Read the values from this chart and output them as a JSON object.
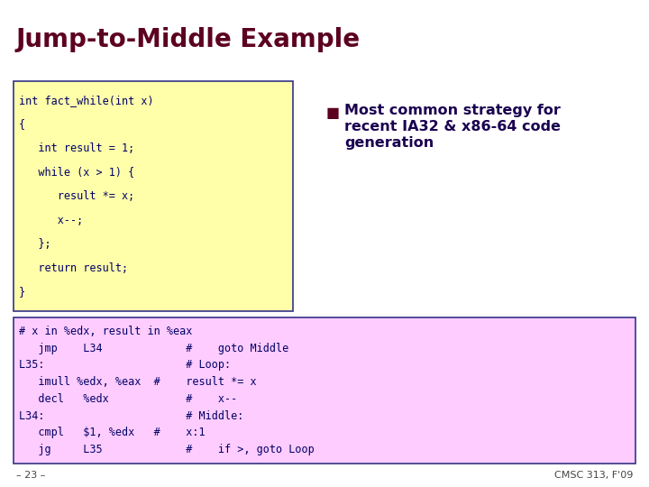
{
  "title": "Jump-to-Middle Example",
  "title_color": "#5c0020",
  "title_fontsize": 20,
  "bg_color": "#ffffff",
  "code_box1_bg": "#ffffaa",
  "code_box1_border": "#333388",
  "code_box2_bg": "#ffccff",
  "code_box2_border": "#333388",
  "code_color": "#000066",
  "code_fontsize": 8.5,
  "code_box1_lines": [
    "int fact_while(int x)",
    "{",
    "   int result = 1;",
    "   while (x > 1) {",
    "      result *= x;",
    "      x--;",
    "   };",
    "   return result;",
    "}"
  ],
  "code_box2_lines": [
    "# x in %edx, result in %eax",
    "   jmp    L34             #    goto Middle",
    "L35:                      # Loop:",
    "   imull %edx, %eax  #    result *= x",
    "   decl   %edx            #    x--",
    "L34:                      # Middle:",
    "   cmpl   $1, %edx   #    x:1",
    "   jg     L35             #    if >, goto Loop"
  ],
  "bullet_color": "#1a0050",
  "bullet_square_color": "#5c0020",
  "bullet_fontsize": 11.5,
  "bullet_text_lines": [
    "Most common strategy for",
    "recent IA32 & x86-64 code",
    "generation"
  ],
  "footer_left": "– 23 –",
  "footer_right": "CMSC 313, F'09",
  "footer_color": "#444444",
  "footer_fontsize": 8
}
